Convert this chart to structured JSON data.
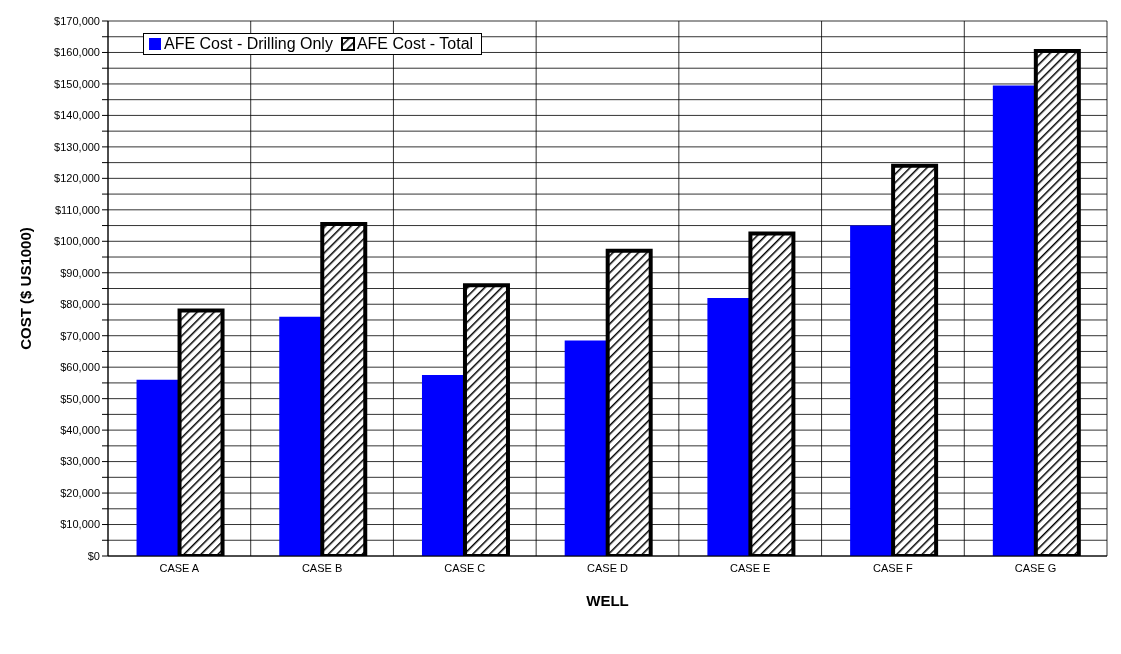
{
  "chart_data": {
    "type": "bar",
    "xlabel": "WELL",
    "ylabel": "COST ($ US1000)",
    "categories": [
      "CASE A",
      "CASE B",
      "CASE C",
      "CASE D",
      "CASE E",
      "CASE F",
      "CASE G"
    ],
    "series": [
      {
        "name": "AFE Cost - Drilling Only",
        "color": "#0000ff",
        "values": [
          56000,
          76000,
          57500,
          68500,
          82000,
          105000,
          149500
        ]
      },
      {
        "name": "AFE Cost - Total",
        "color": "#000000",
        "values": [
          78000,
          105500,
          86000,
          97000,
          102500,
          124000,
          160500
        ]
      }
    ],
    "ylim": [
      0,
      170000
    ],
    "yticks": [
      {
        "value": 0,
        "label": "$0"
      },
      {
        "value": 5000,
        "label": null
      },
      {
        "value": 10000,
        "label": "$10,000"
      },
      {
        "value": 15000,
        "label": null
      },
      {
        "value": 20000,
        "label": "$20,000"
      },
      {
        "value": 25000,
        "label": null
      },
      {
        "value": 30000,
        "label": "$30,000"
      },
      {
        "value": 35000,
        "label": null
      },
      {
        "value": 40000,
        "label": "$40,000"
      },
      {
        "value": 45000,
        "label": null
      },
      {
        "value": 50000,
        "label": "$50,000"
      },
      {
        "value": 55000,
        "label": null
      },
      {
        "value": 60000,
        "label": "$60,000"
      },
      {
        "value": 65000,
        "label": null
      },
      {
        "value": 70000,
        "label": "$70,000"
      },
      {
        "value": 75000,
        "label": null
      },
      {
        "value": 80000,
        "label": "$80,000"
      },
      {
        "value": 85000,
        "label": null
      },
      {
        "value": 90000,
        "label": "$90,000"
      },
      {
        "value": 95000,
        "label": null
      },
      {
        "value": 100000,
        "label": "$100,000"
      },
      {
        "value": 105000,
        "label": null
      },
      {
        "value": 110000,
        "label": "$110,000"
      },
      {
        "value": 115000,
        "label": null
      },
      {
        "value": 120000,
        "label": "$120,000"
      },
      {
        "value": 125000,
        "label": null
      },
      {
        "value": 130000,
        "label": "$130,000"
      },
      {
        "value": 135000,
        "label": null
      },
      {
        "value": 140000,
        "label": "$140,000"
      },
      {
        "value": 145000,
        "label": null
      },
      {
        "value": 150000,
        "label": "$150,000"
      },
      {
        "value": 155000,
        "label": null
      },
      {
        "value": 160000,
        "label": "$160,000"
      },
      {
        "value": 165000,
        "label": null
      },
      {
        "value": 170000,
        "label": "$170,000"
      }
    ],
    "grid": true,
    "legend": "top left"
  }
}
